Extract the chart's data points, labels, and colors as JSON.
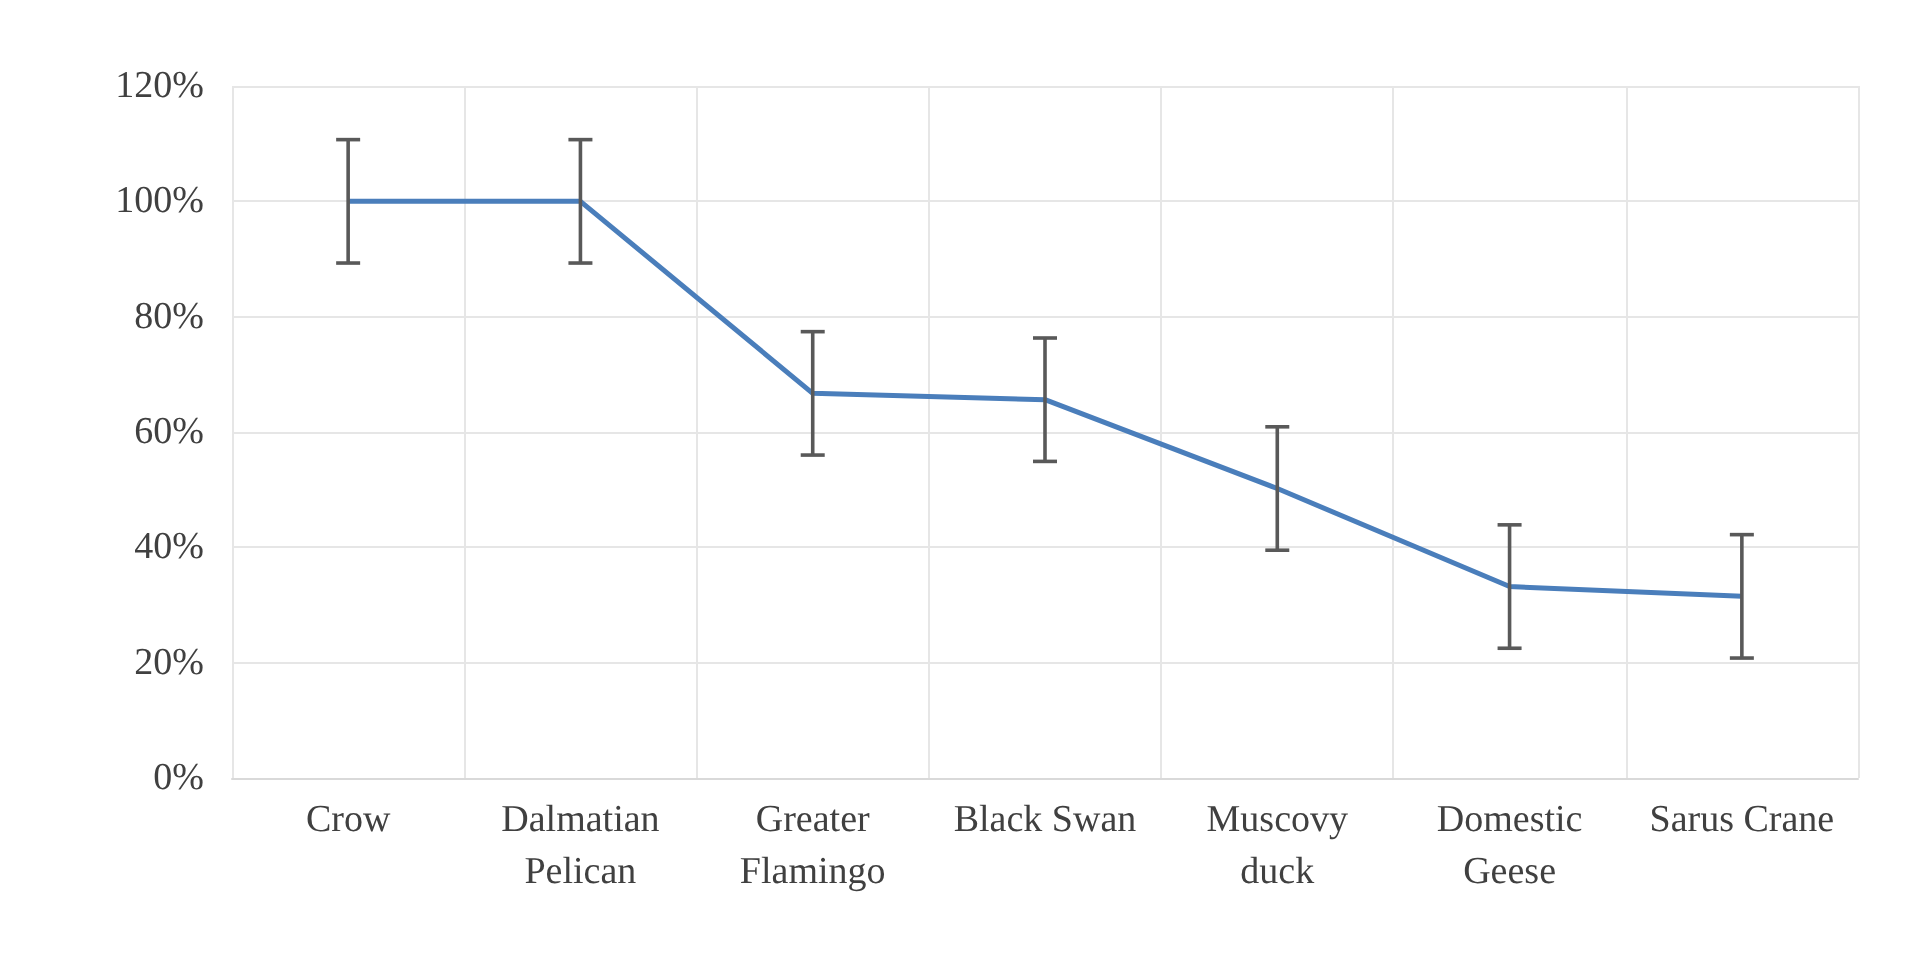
{
  "chart_data": {
    "type": "line",
    "categories": [
      "Crow",
      "Dalmatian\nPelican",
      "Greater\nFlamingo",
      "Black Swan",
      "Muscovy\nduck",
      "Domestic\nGeese",
      "Sarus Crane"
    ],
    "series": [
      {
        "color": "#4a7ebb",
        "values": [
          100,
          100,
          66.7,
          65.6,
          50.2,
          33.2,
          31.5
        ],
        "errors": [
          10.7,
          10.7,
          10.7,
          10.7,
          10.7,
          10.7,
          10.7
        ]
      }
    ],
    "ylim": [
      0,
      120
    ],
    "yticks": [
      {
        "value": 0,
        "label": "0%"
      },
      {
        "value": 20,
        "label": "20%"
      },
      {
        "value": 40,
        "label": "40%"
      },
      {
        "value": 60,
        "label": "60%"
      },
      {
        "value": 80,
        "label": "80%"
      },
      {
        "value": 100,
        "label": "100%"
      },
      {
        "value": 120,
        "label": "120%"
      }
    ],
    "grid": true,
    "marker": "none",
    "line_style": "solid"
  }
}
